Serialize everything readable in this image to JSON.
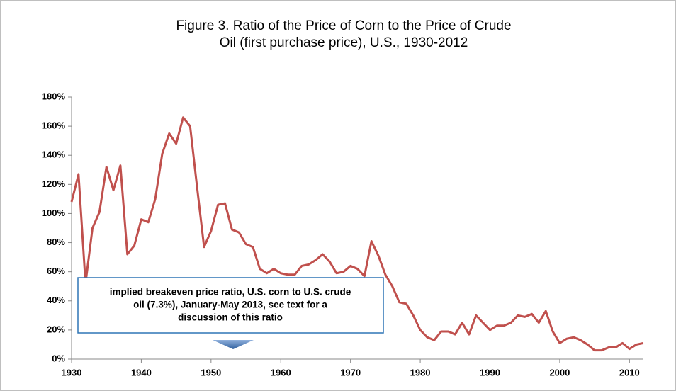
{
  "chart_data": {
    "type": "line",
    "title": [
      "Figure 3.  Ratio of the Price of Corn to the Price of Crude",
      "Oil (first purchase price), U.S., 1930-2012"
    ],
    "annotation": [
      "implied breakeven price ratio, U.S. corn to U.S. crude",
      "oil (7.3%), January-May 2013, see text for a",
      "discussion of this ratio"
    ],
    "x": [
      1930,
      1931,
      1932,
      1933,
      1934,
      1935,
      1936,
      1937,
      1938,
      1939,
      1940,
      1941,
      1942,
      1943,
      1944,
      1945,
      1946,
      1947,
      1948,
      1949,
      1950,
      1951,
      1952,
      1953,
      1954,
      1955,
      1956,
      1957,
      1958,
      1959,
      1960,
      1961,
      1962,
      1963,
      1964,
      1965,
      1966,
      1967,
      1968,
      1969,
      1970,
      1971,
      1972,
      1973,
      1974,
      1975,
      1976,
      1977,
      1978,
      1979,
      1980,
      1981,
      1982,
      1983,
      1984,
      1985,
      1986,
      1987,
      1988,
      1989,
      1990,
      1991,
      1992,
      1993,
      1994,
      1995,
      1996,
      1997,
      1998,
      1999,
      2000,
      2001,
      2002,
      2003,
      2004,
      2005,
      2006,
      2007,
      2008,
      2009,
      2010,
      2011,
      2012
    ],
    "series": [
      {
        "color": "#c0504d",
        "values": [
          108,
          127,
          52,
          90,
          101,
          132,
          116,
          133,
          72,
          78,
          96,
          94,
          110,
          141,
          155,
          148,
          166,
          160,
          118,
          77,
          88,
          106,
          107,
          89,
          87,
          79,
          77,
          62,
          59,
          62,
          59,
          58,
          58,
          64,
          65,
          68,
          72,
          67,
          59,
          60,
          64,
          62,
          57,
          81,
          71,
          58,
          50,
          39,
          38,
          30,
          20,
          15,
          13,
          19,
          19,
          17,
          25,
          17,
          30,
          25,
          20,
          23,
          23,
          25,
          30,
          29,
          31,
          25,
          33,
          19,
          11,
          14,
          15,
          13,
          10,
          6,
          6,
          8,
          8,
          11,
          7,
          10,
          11
        ]
      }
    ],
    "xlim": [
      1930,
      2012
    ],
    "xticks": [
      1930,
      1940,
      1950,
      1960,
      1970,
      1980,
      1990,
      2000,
      2010
    ],
    "ylim": [
      0,
      180
    ],
    "yticks": [
      {
        "value": 0,
        "label": "0%"
      },
      {
        "value": 20,
        "label": "20%"
      },
      {
        "value": 40,
        "label": "40%"
      },
      {
        "value": 60,
        "label": "60%"
      },
      {
        "value": 80,
        "label": "80%"
      },
      {
        "value": 100,
        "label": "100%"
      },
      {
        "value": 120,
        "label": "120%"
      },
      {
        "value": 140,
        "label": "140%"
      },
      {
        "value": 160,
        "label": "160%"
      },
      {
        "value": 180,
        "label": "180%"
      }
    ],
    "grid": false
  }
}
